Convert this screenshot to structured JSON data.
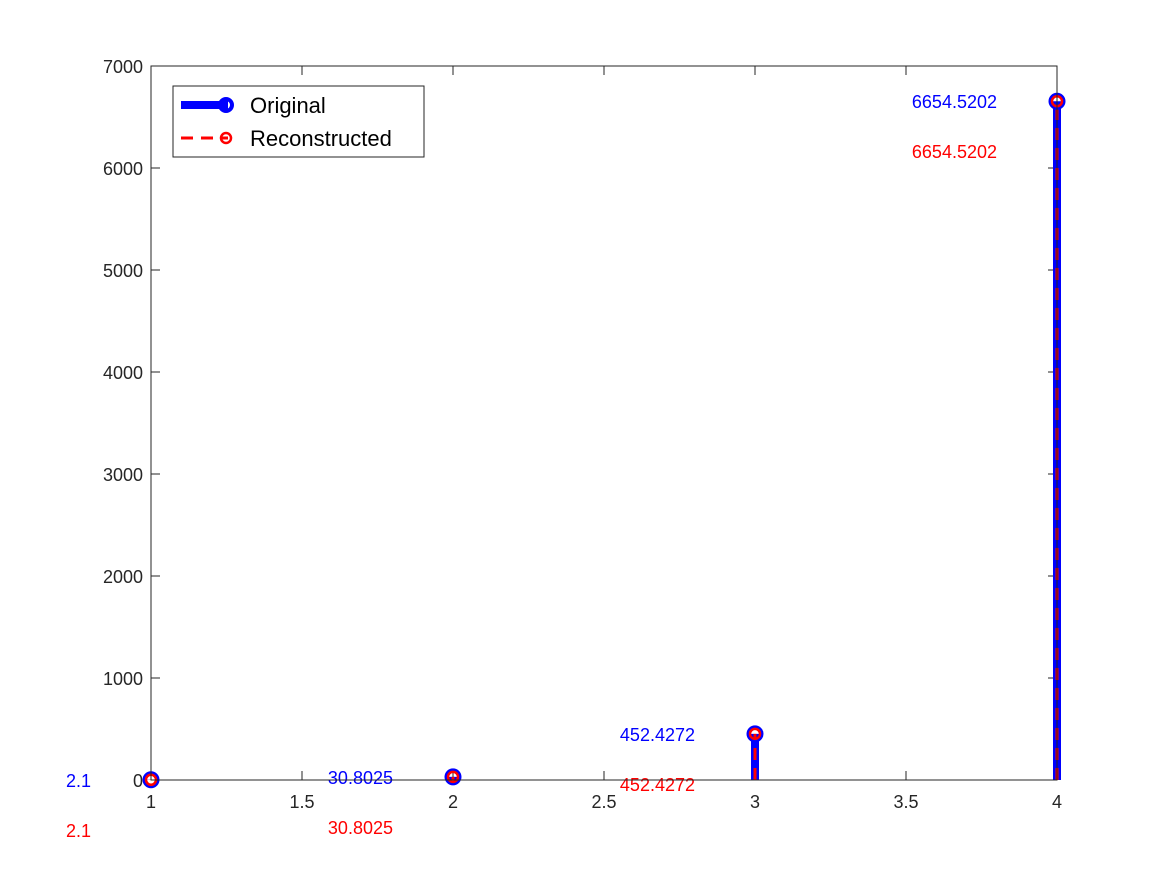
{
  "chart_data": {
    "type": "stem",
    "title": "",
    "xlabel": "",
    "ylabel": "",
    "xlim": [
      1,
      4
    ],
    "ylim": [
      0,
      7000
    ],
    "x_ticks": [
      1,
      1.5,
      2,
      2.5,
      3,
      3.5,
      4
    ],
    "x_tick_labels": [
      "1",
      "1.5",
      "2",
      "2.5",
      "3",
      "3.5",
      "4"
    ],
    "y_ticks": [
      0,
      1000,
      2000,
      3000,
      4000,
      5000,
      6000,
      7000
    ],
    "y_tick_labels": [
      "0",
      "1000",
      "2000",
      "3000",
      "4000",
      "5000",
      "6000",
      "7000"
    ],
    "grid": false,
    "legend_position": "top-left",
    "x": [
      1,
      2,
      3,
      4
    ],
    "series": [
      {
        "name": "Original",
        "color": "#0000ff",
        "line_style": "solid",
        "marker": "circle",
        "values": [
          2.1,
          30.8025,
          452.4272,
          6654.5202
        ],
        "labels": [
          "2.1",
          "30.8025",
          "452.4272",
          "6654.5202"
        ]
      },
      {
        "name": "Reconstructed",
        "color": "#ff0000",
        "line_style": "dashed",
        "marker": "circle",
        "values": [
          2.1,
          30.8025,
          452.4272,
          6654.5202
        ],
        "labels": [
          "2.1",
          "30.8025",
          "452.4272",
          "6654.5202"
        ]
      }
    ]
  }
}
